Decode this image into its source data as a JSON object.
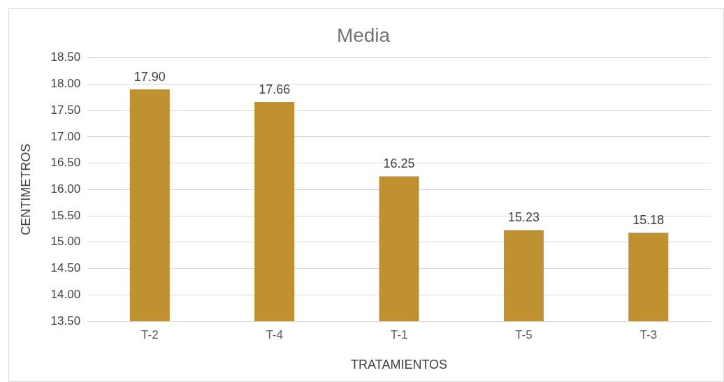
{
  "chart_data": {
    "type": "bar",
    "title": "Media",
    "xlabel": "TRATAMIENTOS",
    "ylabel": "CENTIMETROS",
    "categories": [
      "T-2",
      "T-4",
      "T-1",
      "T-5",
      "T-3"
    ],
    "values": [
      17.9,
      17.66,
      16.25,
      15.23,
      15.18
    ],
    "value_labels": [
      "17.90",
      "17.66",
      "16.25",
      "15.23",
      "15.18"
    ],
    "color": "#bf9130",
    "ylim": [
      13.5,
      18.5
    ],
    "yticks": [
      {
        "value": 13.5,
        "label": "13.50"
      },
      {
        "value": 14,
        "label": "14.00"
      },
      {
        "value": 14.5,
        "label": "14.50"
      },
      {
        "value": 15,
        "label": "15.00"
      },
      {
        "value": 15.5,
        "label": "15.50"
      },
      {
        "value": 16,
        "label": "16.00"
      },
      {
        "value": 16.5,
        "label": "16.50"
      },
      {
        "value": 17,
        "label": "17.00"
      },
      {
        "value": 17.5,
        "label": "17.50"
      },
      {
        "value": 18,
        "label": "18.00"
      },
      {
        "value": 18.5,
        "label": "18.50"
      }
    ],
    "grid": "y",
    "legend": false
  }
}
